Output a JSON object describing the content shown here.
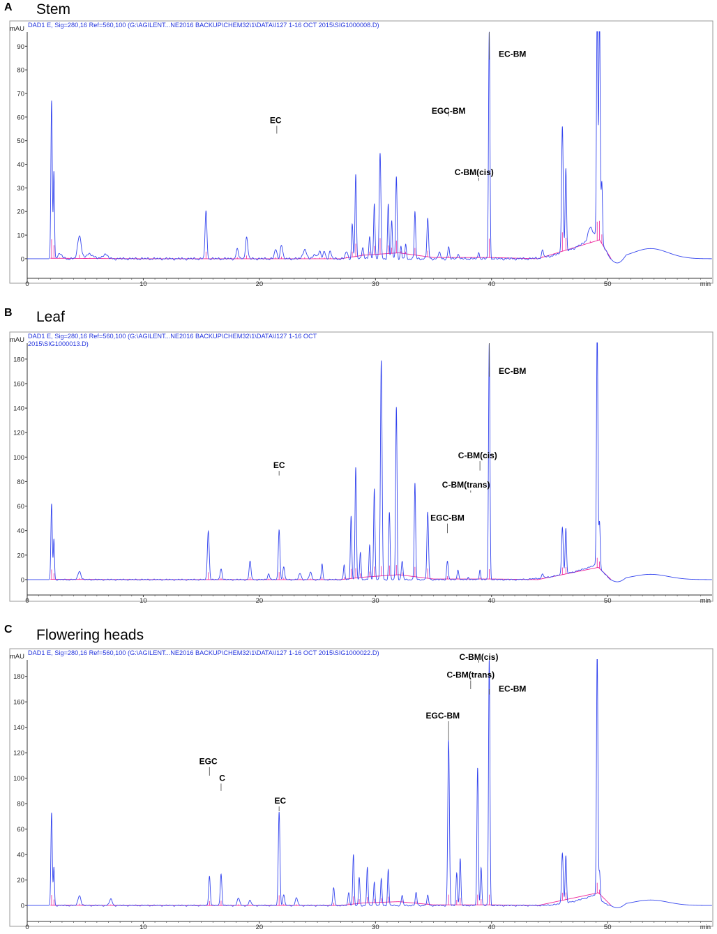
{
  "chart_data": [
    {
      "type": "line",
      "letter": "A",
      "title": "Stem",
      "header": [
        "DAD1 E, Sig=280,16 Ref=560,100 (G:\\AGILENT...NE2016 BACKUP\\CHEM32\\1\\DATA\\I127 1-16 OCT 2015\\SIG1000008.D)"
      ],
      "ylabel": "mAU",
      "xlabel": "min",
      "xlim": [
        0,
        59
      ],
      "ylim": [
        -8,
        96
      ],
      "xticks": [
        0,
        10,
        20,
        30,
        40,
        50
      ],
      "yticks": [
        0,
        10,
        20,
        30,
        40,
        50,
        60,
        70,
        80,
        90
      ],
      "hump": {
        "t": 53.7,
        "h": 4.3,
        "w": 1.5
      },
      "peaks": [
        [
          2.1,
          67,
          0.06
        ],
        [
          2.3,
          37,
          0.05
        ],
        [
          2.8,
          2,
          0.2
        ],
        [
          4.5,
          10,
          0.15
        ],
        [
          5.4,
          2,
          0.3
        ],
        [
          6.7,
          2,
          0.2
        ],
        [
          15.4,
          20,
          0.08
        ],
        [
          18.1,
          4,
          0.1
        ],
        [
          18.9,
          9,
          0.1
        ],
        [
          21.4,
          4,
          0.1
        ],
        [
          21.9,
          6,
          0.1
        ],
        [
          23.9,
          4,
          0.15
        ],
        [
          24.8,
          2,
          0.15
        ],
        [
          25.2,
          3,
          0.1
        ],
        [
          25.6,
          3,
          0.1
        ],
        [
          26.1,
          3,
          0.1
        ],
        [
          27.5,
          3,
          0.1
        ],
        [
          28.0,
          15,
          0.06
        ],
        [
          28.3,
          36,
          0.06
        ],
        [
          28.9,
          5,
          0.08
        ],
        [
          29.5,
          9,
          0.07
        ],
        [
          29.9,
          24,
          0.06
        ],
        [
          30.4,
          45,
          0.07
        ],
        [
          31.1,
          23,
          0.06
        ],
        [
          31.4,
          16,
          0.06
        ],
        [
          31.8,
          35,
          0.06
        ],
        [
          32.2,
          5,
          0.06
        ],
        [
          32.6,
          6,
          0.06
        ],
        [
          33.4,
          20,
          0.06
        ],
        [
          34.5,
          17,
          0.07
        ],
        [
          35.5,
          3,
          0.08
        ],
        [
          36.3,
          5,
          0.07
        ],
        [
          37.1,
          2,
          0.08
        ],
        [
          38.9,
          3,
          0.06
        ],
        [
          39.8,
          96,
          0.06
        ],
        [
          44.4,
          3,
          0.08
        ],
        [
          46.1,
          54,
          0.07
        ],
        [
          46.4,
          35,
          0.06
        ],
        [
          48.5,
          5,
          0.2
        ],
        [
          49.1,
          96,
          0.06
        ],
        [
          49.3,
          96,
          0.06
        ],
        [
          49.5,
          26,
          0.06
        ]
      ],
      "rise": {
        "start": 43,
        "peak": 49.1,
        "end": 50.2,
        "max": 10
      },
      "baseline": [
        [
          2.0,
          0.2
        ],
        [
          10,
          0
        ],
        [
          20,
          0
        ],
        [
          27,
          0
        ],
        [
          29,
          1.5
        ],
        [
          32,
          2.5
        ],
        [
          35,
          0.5
        ],
        [
          40,
          0.5
        ],
        [
          44,
          0
        ],
        [
          49.3,
          8
        ],
        [
          50.3,
          0
        ]
      ],
      "annotations": [
        {
          "text": "EC",
          "x": 21.5,
          "y": 53,
          "label_y": 57.5,
          "label_x": 21.4
        },
        {
          "text": "EGC-BM",
          "x": 36.3,
          "y": 63,
          "label_y": 61.5,
          "label_x": 36.3
        },
        {
          "text": "C-BM(cis)",
          "x": 38.9,
          "y": 33,
          "label_y": 35.5,
          "label_x": 38.5
        },
        {
          "text": "EC-BM",
          "x": 39.8,
          "y": 96,
          "label_y": 85.5,
          "label_x": 41.8
        }
      ]
    },
    {
      "type": "line",
      "letter": "B",
      "title": "Leaf",
      "header": [
        "DAD1 E, Sig=280,16 Ref=560,100 (G:\\AGILENT...NE2016 BACKUP\\CHEM32\\1\\DATA\\I127 1-16 OCT",
        "2015\\SIG1000013.D)"
      ],
      "ylabel": "mAU",
      "xlabel": "min",
      "xlim": [
        0,
        59
      ],
      "ylim": [
        -12,
        193
      ],
      "xticks": [
        0,
        10,
        20,
        30,
        40,
        50
      ],
      "yticks": [
        0,
        20,
        40,
        60,
        80,
        100,
        120,
        140,
        160,
        180
      ],
      "hump": {
        "t": 53.7,
        "h": 4.3,
        "w": 1.5
      },
      "peaks": [
        [
          2.1,
          62,
          0.06
        ],
        [
          2.3,
          33,
          0.05
        ],
        [
          4.5,
          7,
          0.12
        ],
        [
          15.6,
          40,
          0.08
        ],
        [
          16.7,
          9,
          0.08
        ],
        [
          19.2,
          15,
          0.08
        ],
        [
          20.8,
          5,
          0.08
        ],
        [
          21.7,
          41,
          0.07
        ],
        [
          22.1,
          10,
          0.08
        ],
        [
          23.5,
          5,
          0.1
        ],
        [
          24.4,
          6,
          0.1
        ],
        [
          25.4,
          13,
          0.06
        ],
        [
          27.3,
          12,
          0.06
        ],
        [
          27.9,
          52,
          0.06
        ],
        [
          28.3,
          92,
          0.06
        ],
        [
          28.7,
          22,
          0.06
        ],
        [
          29.5,
          28,
          0.06
        ],
        [
          29.9,
          75,
          0.06
        ],
        [
          30.5,
          179,
          0.07
        ],
        [
          31.2,
          55,
          0.06
        ],
        [
          31.8,
          141,
          0.06
        ],
        [
          32.3,
          15,
          0.07
        ],
        [
          33.4,
          79,
          0.06
        ],
        [
          34.5,
          55,
          0.07
        ],
        [
          36.2,
          15,
          0.07
        ],
        [
          37.1,
          8,
          0.07
        ],
        [
          38.0,
          2,
          0.06
        ],
        [
          39.0,
          8,
          0.06
        ],
        [
          39.8,
          193,
          0.06
        ],
        [
          44.4,
          3,
          0.08
        ],
        [
          46.1,
          39,
          0.07
        ],
        [
          46.4,
          37,
          0.06
        ],
        [
          49.1,
          193,
          0.06
        ],
        [
          49.3,
          38,
          0.06
        ]
      ],
      "rise": {
        "start": 42,
        "peak": 49.0,
        "end": 50.2,
        "max": 12
      },
      "baseline": [
        [
          2.0,
          0.2
        ],
        [
          10,
          0
        ],
        [
          20,
          0
        ],
        [
          27,
          0
        ],
        [
          29,
          2
        ],
        [
          32,
          4
        ],
        [
          35,
          0.5
        ],
        [
          40,
          0.5
        ],
        [
          44,
          0
        ],
        [
          49.2,
          10
        ],
        [
          50.3,
          0
        ]
      ],
      "annotations": [
        {
          "text": "EC",
          "x": 21.7,
          "y": 85,
          "label_y": 91,
          "label_x": 21.7
        },
        {
          "text": "EGC-BM",
          "x": 36.2,
          "y": 38,
          "label_y": 48,
          "label_x": 36.2
        },
        {
          "text": "C-BM(trans)",
          "x": 38.2,
          "y": 71,
          "label_y": 75,
          "label_x": 37.8
        },
        {
          "text": "C-BM(cis)",
          "x": 39.0,
          "y": 89,
          "label_y": 99,
          "label_x": 38.8
        },
        {
          "text": "EC-BM",
          "x": 39.8,
          "y": 193,
          "label_y": 168,
          "label_x": 41.8
        }
      ]
    },
    {
      "type": "line",
      "letter": "C",
      "title": "Flowering heads",
      "header": [
        "DAD1 E, Sig=280,16 Ref=560,100 (G:\\AGILENT...NE2016 BACKUP\\CHEM32\\1\\DATA\\I127 1-16 OCT 2015\\SIG1000022.D)"
      ],
      "ylabel": "mAU",
      "xlabel": "min",
      "xlim": [
        0,
        59
      ],
      "ylim": [
        -12,
        193
      ],
      "xticks": [
        0,
        10,
        20,
        30,
        40,
        50
      ],
      "yticks": [
        0,
        20,
        40,
        60,
        80,
        100,
        120,
        140,
        160,
        180
      ],
      "hump": {
        "t": 53.7,
        "h": 4.3,
        "w": 1.5
      },
      "peaks": [
        [
          2.1,
          73,
          0.06
        ],
        [
          2.3,
          30,
          0.05
        ],
        [
          4.5,
          8,
          0.12
        ],
        [
          7.2,
          5,
          0.12
        ],
        [
          15.7,
          23,
          0.07
        ],
        [
          16.7,
          25,
          0.07
        ],
        [
          18.2,
          6,
          0.1
        ],
        [
          19.2,
          4,
          0.1
        ],
        [
          21.7,
          74,
          0.07
        ],
        [
          22.1,
          8,
          0.08
        ],
        [
          23.2,
          6,
          0.1
        ],
        [
          26.4,
          14,
          0.07
        ],
        [
          27.7,
          10,
          0.07
        ],
        [
          28.1,
          40,
          0.06
        ],
        [
          28.6,
          22,
          0.06
        ],
        [
          29.3,
          30,
          0.06
        ],
        [
          29.9,
          19,
          0.06
        ],
        [
          30.5,
          21,
          0.06
        ],
        [
          31.1,
          28,
          0.06
        ],
        [
          32.3,
          8,
          0.07
        ],
        [
          33.5,
          10,
          0.07
        ],
        [
          34.5,
          8,
          0.07
        ],
        [
          36.3,
          130,
          0.07
        ],
        [
          37.0,
          26,
          0.06
        ],
        [
          37.3,
          37,
          0.06
        ],
        [
          38.8,
          108,
          0.06
        ],
        [
          39.1,
          30,
          0.06
        ],
        [
          39.8,
          193,
          0.06
        ],
        [
          46.1,
          40,
          0.07
        ],
        [
          46.4,
          37,
          0.06
        ],
        [
          49.1,
          193,
          0.06
        ],
        [
          49.3,
          22,
          0.06
        ]
      ],
      "rise": {
        "start": 44,
        "peak": 48.8,
        "end": 50.0,
        "max": 8
      },
      "baseline": [
        [
          2.0,
          0.2
        ],
        [
          10,
          0
        ],
        [
          20,
          0
        ],
        [
          27,
          0
        ],
        [
          29,
          2
        ],
        [
          32,
          3
        ],
        [
          35,
          0.5
        ],
        [
          40,
          0.5
        ],
        [
          44,
          0
        ],
        [
          49.2,
          10
        ],
        [
          50.3,
          0
        ]
      ],
      "annotations": [
        {
          "text": "EGC",
          "x": 15.7,
          "y": 102,
          "label_y": 111,
          "label_x": 15.6
        },
        {
          "text": "C",
          "x": 16.7,
          "y": 90,
          "label_y": 98,
          "label_x": 16.8
        },
        {
          "text": "EC",
          "x": 21.7,
          "y": 74,
          "label_y": 80,
          "label_x": 21.8
        },
        {
          "text": "EGC-BM",
          "x": 36.3,
          "y": 130,
          "label_y": 147,
          "label_x": 35.8
        },
        {
          "text": "C-BM(trans)",
          "x": 38.2,
          "y": 170,
          "label_y": 179,
          "label_x": 38.2
        },
        {
          "text": "C-BM(cis)",
          "x": 38.9,
          "y": 193,
          "label_y": 193,
          "label_x": 38.9
        },
        {
          "text": "EC-BM",
          "x": 39.8,
          "y": 170,
          "label_y": 168,
          "label_x": 41.8
        }
      ]
    }
  ]
}
